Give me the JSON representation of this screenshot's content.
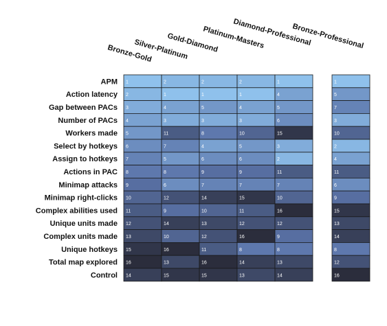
{
  "chart_data": {
    "type": "heatmap",
    "title": "",
    "rows": [
      "APM",
      "Action latency",
      "Gap between PACs",
      "Number of PACs",
      "Workers made",
      "Select by hotkeys",
      "Assign to hotkeys",
      "Actions in PAC",
      "Minimap attacks",
      "Minimap right-clicks",
      "Complex abilities used",
      "Unique units made",
      "Complex units made",
      "Unique hotkeys",
      "Total map explored",
      "Control"
    ],
    "columns": [
      "Bronze-Gold",
      "Silver-Platinum",
      "Gold-Diamond",
      "Platinum-Masters",
      "Diamond-Professional",
      "Bronze-Professional"
    ],
    "column_groups": [
      [
        0,
        1,
        2,
        3,
        4
      ],
      [
        5
      ]
    ],
    "values": [
      [
        1,
        2,
        2,
        2,
        1,
        1
      ],
      [
        2,
        1,
        1,
        1,
        4,
        5
      ],
      [
        3,
        4,
        5,
        4,
        5,
        7
      ],
      [
        4,
        3,
        3,
        3,
        6,
        3
      ],
      [
        5,
        11,
        8,
        10,
        15,
        10
      ],
      [
        6,
        7,
        4,
        5,
        3,
        2
      ],
      [
        7,
        5,
        6,
        6,
        2,
        4
      ],
      [
        8,
        8,
        9,
        9,
        11,
        11
      ],
      [
        9,
        6,
        7,
        7,
        7,
        6
      ],
      [
        10,
        12,
        14,
        15,
        10,
        9
      ],
      [
        11,
        9,
        10,
        11,
        16,
        15
      ],
      [
        12,
        14,
        13,
        12,
        12,
        13
      ],
      [
        13,
        10,
        12,
        16,
        9,
        14
      ],
      [
        15,
        16,
        11,
        8,
        8,
        8
      ],
      [
        16,
        13,
        16,
        14,
        13,
        12
      ],
      [
        14,
        15,
        15,
        13,
        14,
        16
      ]
    ],
    "value_range": [
      1,
      16
    ],
    "color_scale": {
      "low": "#8fc1ec",
      "mid": "#5a73a8",
      "high": "#2b2d3c"
    }
  }
}
